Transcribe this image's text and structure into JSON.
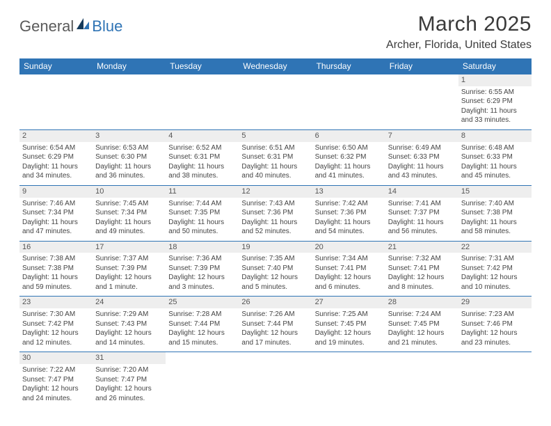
{
  "logo": {
    "part1": "General",
    "part2": "Blue"
  },
  "title": "March 2025",
  "location": "Archer, Florida, United States",
  "colors": {
    "header_bg": "#2f74b5",
    "header_fg": "#ffffff",
    "daynum_bg": "#eeeeee",
    "rule": "#2f74b5",
    "logo_blue": "#2f74b5",
    "logo_dark": "#153a5b"
  },
  "day_names": [
    "Sunday",
    "Monday",
    "Tuesday",
    "Wednesday",
    "Thursday",
    "Friday",
    "Saturday"
  ],
  "weeks": [
    [
      {
        "blank": true
      },
      {
        "blank": true
      },
      {
        "blank": true
      },
      {
        "blank": true
      },
      {
        "blank": true
      },
      {
        "blank": true
      },
      {
        "n": "1",
        "sunrise": "Sunrise: 6:55 AM",
        "sunset": "Sunset: 6:29 PM",
        "day1": "Daylight: 11 hours",
        "day2": "and 33 minutes."
      }
    ],
    [
      {
        "n": "2",
        "sunrise": "Sunrise: 6:54 AM",
        "sunset": "Sunset: 6:29 PM",
        "day1": "Daylight: 11 hours",
        "day2": "and 34 minutes."
      },
      {
        "n": "3",
        "sunrise": "Sunrise: 6:53 AM",
        "sunset": "Sunset: 6:30 PM",
        "day1": "Daylight: 11 hours",
        "day2": "and 36 minutes."
      },
      {
        "n": "4",
        "sunrise": "Sunrise: 6:52 AM",
        "sunset": "Sunset: 6:31 PM",
        "day1": "Daylight: 11 hours",
        "day2": "and 38 minutes."
      },
      {
        "n": "5",
        "sunrise": "Sunrise: 6:51 AM",
        "sunset": "Sunset: 6:31 PM",
        "day1": "Daylight: 11 hours",
        "day2": "and 40 minutes."
      },
      {
        "n": "6",
        "sunrise": "Sunrise: 6:50 AM",
        "sunset": "Sunset: 6:32 PM",
        "day1": "Daylight: 11 hours",
        "day2": "and 41 minutes."
      },
      {
        "n": "7",
        "sunrise": "Sunrise: 6:49 AM",
        "sunset": "Sunset: 6:33 PM",
        "day1": "Daylight: 11 hours",
        "day2": "and 43 minutes."
      },
      {
        "n": "8",
        "sunrise": "Sunrise: 6:48 AM",
        "sunset": "Sunset: 6:33 PM",
        "day1": "Daylight: 11 hours",
        "day2": "and 45 minutes."
      }
    ],
    [
      {
        "n": "9",
        "sunrise": "Sunrise: 7:46 AM",
        "sunset": "Sunset: 7:34 PM",
        "day1": "Daylight: 11 hours",
        "day2": "and 47 minutes."
      },
      {
        "n": "10",
        "sunrise": "Sunrise: 7:45 AM",
        "sunset": "Sunset: 7:34 PM",
        "day1": "Daylight: 11 hours",
        "day2": "and 49 minutes."
      },
      {
        "n": "11",
        "sunrise": "Sunrise: 7:44 AM",
        "sunset": "Sunset: 7:35 PM",
        "day1": "Daylight: 11 hours",
        "day2": "and 50 minutes."
      },
      {
        "n": "12",
        "sunrise": "Sunrise: 7:43 AM",
        "sunset": "Sunset: 7:36 PM",
        "day1": "Daylight: 11 hours",
        "day2": "and 52 minutes."
      },
      {
        "n": "13",
        "sunrise": "Sunrise: 7:42 AM",
        "sunset": "Sunset: 7:36 PM",
        "day1": "Daylight: 11 hours",
        "day2": "and 54 minutes."
      },
      {
        "n": "14",
        "sunrise": "Sunrise: 7:41 AM",
        "sunset": "Sunset: 7:37 PM",
        "day1": "Daylight: 11 hours",
        "day2": "and 56 minutes."
      },
      {
        "n": "15",
        "sunrise": "Sunrise: 7:40 AM",
        "sunset": "Sunset: 7:38 PM",
        "day1": "Daylight: 11 hours",
        "day2": "and 58 minutes."
      }
    ],
    [
      {
        "n": "16",
        "sunrise": "Sunrise: 7:38 AM",
        "sunset": "Sunset: 7:38 PM",
        "day1": "Daylight: 11 hours",
        "day2": "and 59 minutes."
      },
      {
        "n": "17",
        "sunrise": "Sunrise: 7:37 AM",
        "sunset": "Sunset: 7:39 PM",
        "day1": "Daylight: 12 hours",
        "day2": "and 1 minute."
      },
      {
        "n": "18",
        "sunrise": "Sunrise: 7:36 AM",
        "sunset": "Sunset: 7:39 PM",
        "day1": "Daylight: 12 hours",
        "day2": "and 3 minutes."
      },
      {
        "n": "19",
        "sunrise": "Sunrise: 7:35 AM",
        "sunset": "Sunset: 7:40 PM",
        "day1": "Daylight: 12 hours",
        "day2": "and 5 minutes."
      },
      {
        "n": "20",
        "sunrise": "Sunrise: 7:34 AM",
        "sunset": "Sunset: 7:41 PM",
        "day1": "Daylight: 12 hours",
        "day2": "and 6 minutes."
      },
      {
        "n": "21",
        "sunrise": "Sunrise: 7:32 AM",
        "sunset": "Sunset: 7:41 PM",
        "day1": "Daylight: 12 hours",
        "day2": "and 8 minutes."
      },
      {
        "n": "22",
        "sunrise": "Sunrise: 7:31 AM",
        "sunset": "Sunset: 7:42 PM",
        "day1": "Daylight: 12 hours",
        "day2": "and 10 minutes."
      }
    ],
    [
      {
        "n": "23",
        "sunrise": "Sunrise: 7:30 AM",
        "sunset": "Sunset: 7:42 PM",
        "day1": "Daylight: 12 hours",
        "day2": "and 12 minutes."
      },
      {
        "n": "24",
        "sunrise": "Sunrise: 7:29 AM",
        "sunset": "Sunset: 7:43 PM",
        "day1": "Daylight: 12 hours",
        "day2": "and 14 minutes."
      },
      {
        "n": "25",
        "sunrise": "Sunrise: 7:28 AM",
        "sunset": "Sunset: 7:44 PM",
        "day1": "Daylight: 12 hours",
        "day2": "and 15 minutes."
      },
      {
        "n": "26",
        "sunrise": "Sunrise: 7:26 AM",
        "sunset": "Sunset: 7:44 PM",
        "day1": "Daylight: 12 hours",
        "day2": "and 17 minutes."
      },
      {
        "n": "27",
        "sunrise": "Sunrise: 7:25 AM",
        "sunset": "Sunset: 7:45 PM",
        "day1": "Daylight: 12 hours",
        "day2": "and 19 minutes."
      },
      {
        "n": "28",
        "sunrise": "Sunrise: 7:24 AM",
        "sunset": "Sunset: 7:45 PM",
        "day1": "Daylight: 12 hours",
        "day2": "and 21 minutes."
      },
      {
        "n": "29",
        "sunrise": "Sunrise: 7:23 AM",
        "sunset": "Sunset: 7:46 PM",
        "day1": "Daylight: 12 hours",
        "day2": "and 23 minutes."
      }
    ],
    [
      {
        "n": "30",
        "sunrise": "Sunrise: 7:22 AM",
        "sunset": "Sunset: 7:47 PM",
        "day1": "Daylight: 12 hours",
        "day2": "and 24 minutes."
      },
      {
        "n": "31",
        "sunrise": "Sunrise: 7:20 AM",
        "sunset": "Sunset: 7:47 PM",
        "day1": "Daylight: 12 hours",
        "day2": "and 26 minutes."
      },
      {
        "blank": true
      },
      {
        "blank": true
      },
      {
        "blank": true
      },
      {
        "blank": true
      },
      {
        "blank": true
      }
    ]
  ]
}
